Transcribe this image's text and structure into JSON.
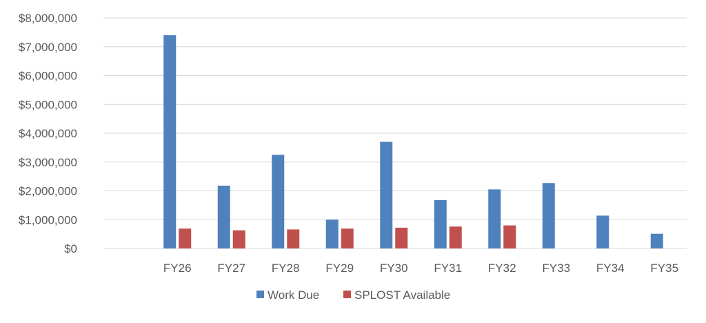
{
  "chart_data": {
    "type": "bar",
    "categories": [
      "FY26",
      "FY27",
      "FY28",
      "FY29",
      "FY30",
      "FY31",
      "FY32",
      "FY33",
      "FY34",
      "FY35"
    ],
    "series": [
      {
        "name": "Work Due",
        "color": "#4F81BD",
        "values": [
          7400000,
          2180000,
          3250000,
          1000000,
          3700000,
          1680000,
          2050000,
          2270000,
          1140000,
          510000
        ]
      },
      {
        "name": "SPLOST Available",
        "color": "#C0504D",
        "values": [
          690000,
          630000,
          660000,
          690000,
          720000,
          760000,
          800000,
          null,
          null,
          null
        ]
      }
    ],
    "y_tick_labels": [
      "$0",
      "$1,000,000",
      "$2,000,000",
      "$3,000,000",
      "$4,000,000",
      "$5,000,000",
      "$6,000,000",
      "$7,000,000",
      "$8,000,000"
    ],
    "ylim": [
      0,
      8000000
    ],
    "ystep": 1000000,
    "title": "",
    "xlabel": "",
    "ylabel": "",
    "grid": true,
    "legend_position": "bottom",
    "gridline_color": "#D9D9D9",
    "text_color": "#595959"
  }
}
